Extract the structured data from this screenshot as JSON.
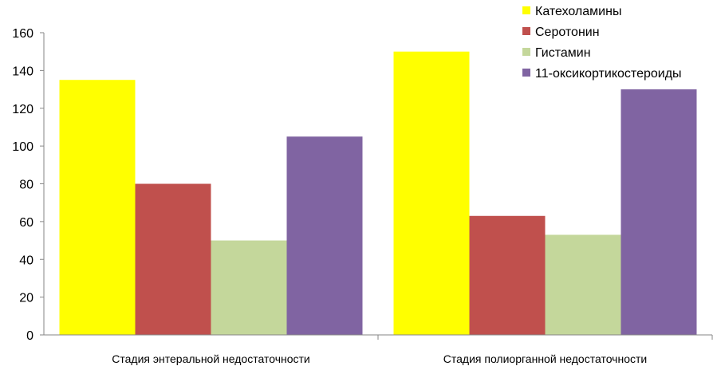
{
  "chart_data": {
    "type": "bar",
    "categories": [
      "Стадия энтеральной недостаточности",
      "Стадия полиорганной недостаточности"
    ],
    "series": [
      {
        "name": "Катехоламины",
        "values": [
          135,
          150
        ],
        "color": "#FFFF00"
      },
      {
        "name": "Серотонин",
        "values": [
          80,
          63
        ],
        "color": "#C0504D"
      },
      {
        "name": "Гистамин",
        "values": [
          50,
          53
        ],
        "color": "#C4D79B"
      },
      {
        "name": "11-оксикортикостероиды",
        "values": [
          105,
          130
        ],
        "color": "#8064A2"
      }
    ],
    "ylim": [
      0,
      160
    ],
    "yticks": [
      0,
      20,
      40,
      60,
      80,
      100,
      120,
      140,
      160
    ],
    "grid": false,
    "legend_position": "top-right",
    "title": "",
    "xlabel": "",
    "ylabel": ""
  }
}
